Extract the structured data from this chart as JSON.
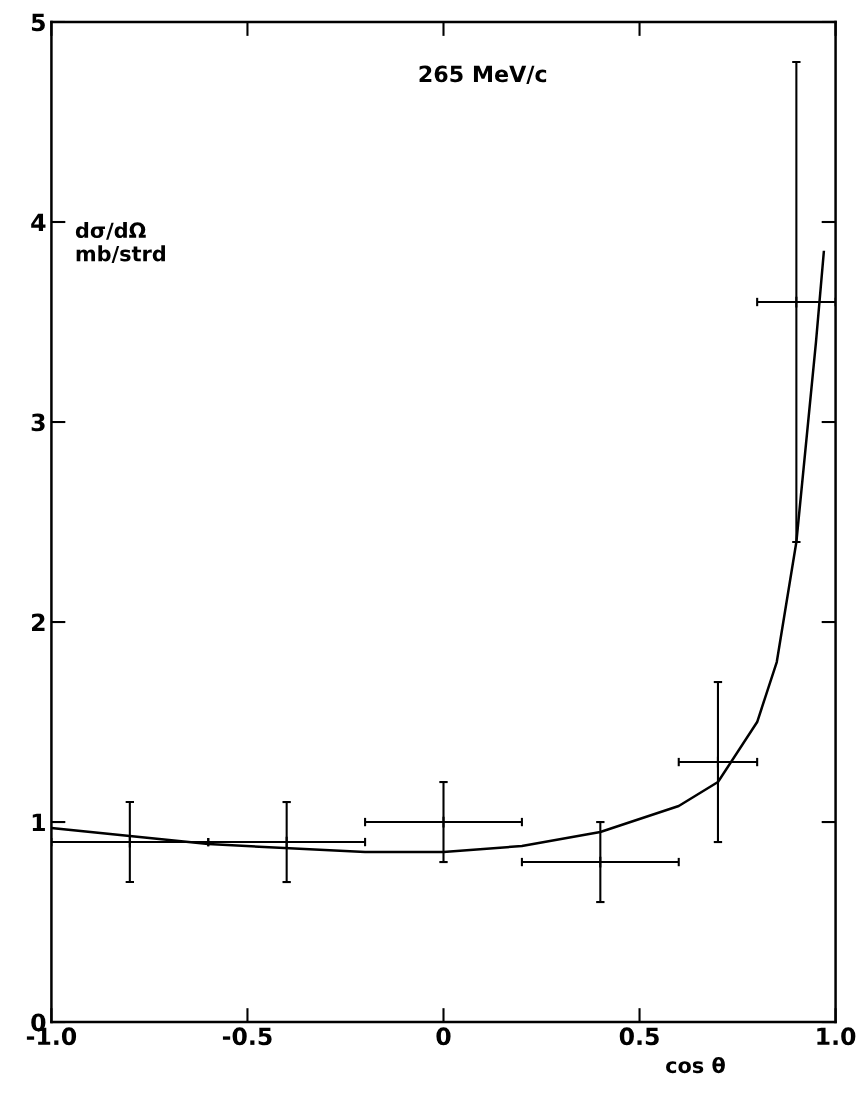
{
  "chart_data": {
    "type": "scatter",
    "xlabel": "cos θ",
    "ylabel": "dσ/dΩ\nmb/strd",
    "annotations": [
      "265 MeV/c"
    ],
    "xlim": [
      -1.0,
      1.0
    ],
    "ylim": [
      0,
      5
    ],
    "xticks": [
      {
        "value": -1.0,
        "label": "-1.0"
      },
      -0.5,
      0,
      0.5,
      {
        "value": 1.0,
        "label": "1.0"
      }
    ],
    "yticks": [
      0,
      1,
      2,
      3,
      4,
      5
    ],
    "grid": false,
    "legend": false,
    "marker": "none",
    "series": [
      {
        "marker": "cross",
        "color": "#000000",
        "x": [
          -0.8,
          -0.4,
          0,
          0.4,
          0.7,
          0.9
        ],
        "values": [
          0.9,
          0.9,
          1.0,
          0.8,
          1.3,
          3.6
        ],
        "errors": [
          0.2,
          0.2,
          0.2,
          0.2,
          0.4,
          1.2
        ],
        "xerrors": [
          0.2,
          0.2,
          0.2,
          0.2,
          0.1,
          0.1
        ]
      },
      {
        "type": "line",
        "color": "#000000",
        "line_style": "solid",
        "x": [
          -1.0,
          -0.6,
          -0.2,
          0,
          0.2,
          0.4,
          0.6,
          0.7,
          0.8,
          0.85,
          0.9,
          0.93,
          0.95,
          0.97
        ],
        "values": [
          0.97,
          0.89,
          0.85,
          0.85,
          0.88,
          0.95,
          1.08,
          1.2,
          1.5,
          1.8,
          2.4,
          3.0,
          3.4,
          3.85
        ]
      }
    ]
  }
}
